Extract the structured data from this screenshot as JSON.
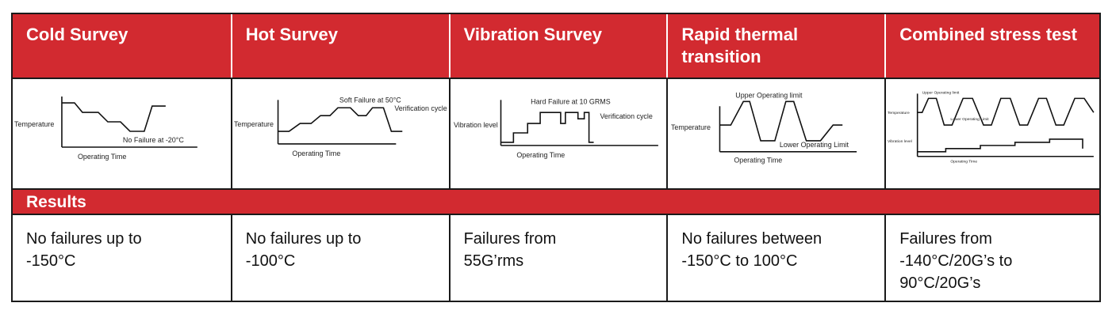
{
  "colors": {
    "header_bg": "#d22a30",
    "header_text": "#ffffff",
    "border": "#1a1a1a"
  },
  "columns": [
    {
      "title": "Cold Survey",
      "diagram": {
        "y_label": "Temperature",
        "x_label": "Operating Time",
        "annotation": "No Failure at -20°C"
      },
      "result_lines": [
        "No failures up to",
        "-150°C"
      ]
    },
    {
      "title": "Hot Survey",
      "diagram": {
        "y_label": "Temperature",
        "x_label": "Operating Time",
        "annotation": "Soft Failure at 50°C",
        "annotation2": "Verification cycle"
      },
      "result_lines": [
        "No failures up to",
        "-100°C"
      ]
    },
    {
      "title": "Vibration Survey",
      "diagram": {
        "y_label": "Vibration level",
        "x_label": "Operating Time",
        "annotation": "Hard Failure at 10 GRMS",
        "annotation2": "Verification cycle"
      },
      "result_lines": [
        "Failures from",
        "55G’rms"
      ]
    },
    {
      "title": "Rapid thermal transition",
      "diagram": {
        "y_label": "Temperature",
        "x_label": "Operating Time",
        "annotation": "Upper Operating limit",
        "annotation2": "Lower Operating Limit"
      },
      "result_lines": [
        "No failures between",
        "-150°C to 100°C"
      ]
    },
    {
      "title": "Combined stress test",
      "diagram": {
        "y_label": "Temperature",
        "y_label2": "Vibration level",
        "x_label": "Operating Time",
        "annotation": "Upper Operating limit",
        "annotation2": "Lower Operating Limit"
      },
      "result_lines": [
        "Failures from",
        "-140°C/20G’s to",
        "90°C/20G’s"
      ]
    }
  ],
  "results_label": "Results"
}
